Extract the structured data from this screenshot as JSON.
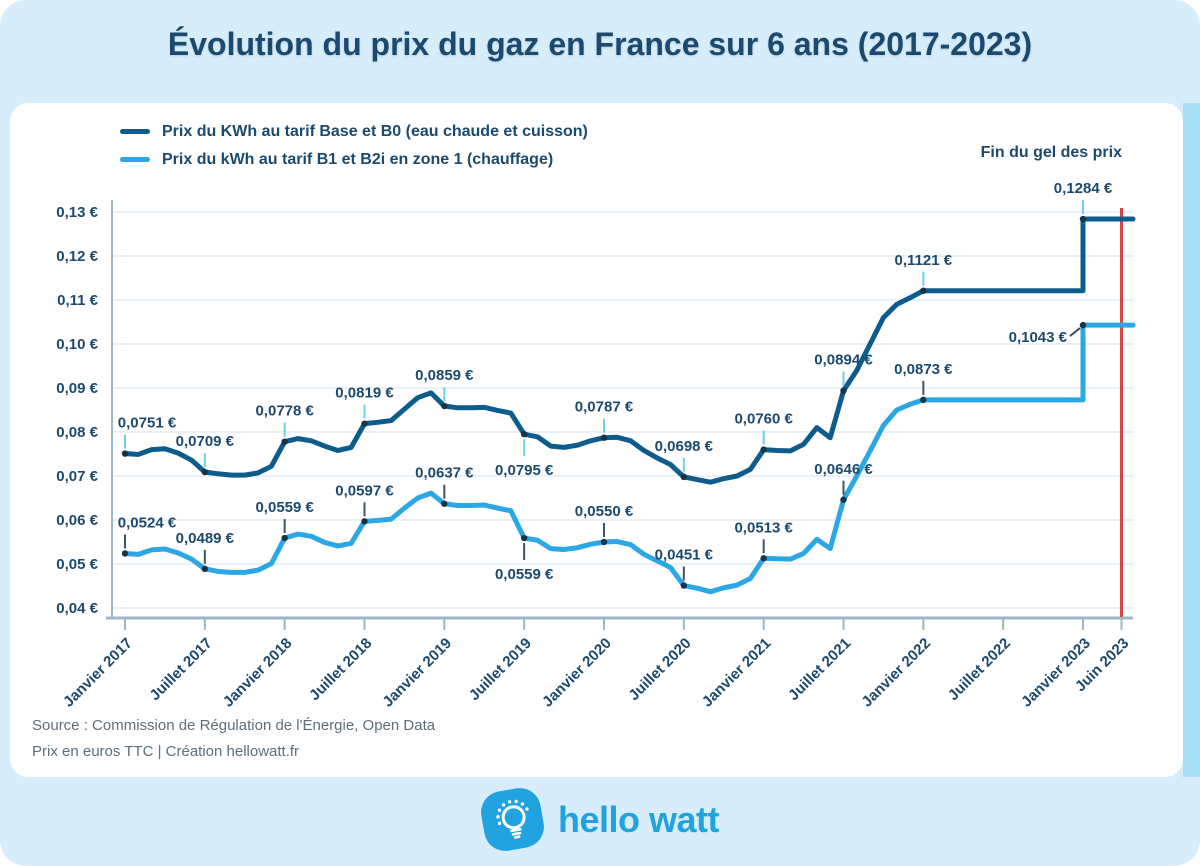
{
  "title": "Évolution du prix du gaz en France sur 6 ans (2017-2023)",
  "legend": {
    "items": [
      {
        "label": "Prix du KWh au tarif Base et B0 (eau chaude et cuisson)",
        "color": "#0d5c8c"
      },
      {
        "label": "Prix du kWh au tarif B1 et B2i en zone 1 (chauffage)",
        "color": "#2aa7e4"
      }
    ]
  },
  "annotation": "Fin du gel des prix",
  "source": {
    "line1": "Source : Commission de Régulation de l'Énergie, Open Data",
    "line2": "Prix en euros TTC | Création hellowatt.fr"
  },
  "logo": {
    "text": "hello watt"
  },
  "colors": {
    "canvas_bg": "#d7edf9",
    "card_bg": "#ffffff",
    "navy_text": "#1b4a6e",
    "series_base": "#0d5c8c",
    "series_b1": "#2aa7e4",
    "grid": "#e2ecf3",
    "axis": "#9db7c6",
    "event_line": "#d8493f",
    "leader_base": "#74ccf4",
    "leader_b1": "#3d5468",
    "dot": "#14344a",
    "gray_text": "#5f6e79",
    "logo_blue": "#21a3e0"
  },
  "chart_data": {
    "type": "line",
    "title": "Évolution du prix du gaz en France sur 6 ans (2017-2023)",
    "y_unit": "€",
    "ylim": [
      0.04,
      0.13
    ],
    "grid": true,
    "legend_position": "top-left",
    "x_months": {
      "start": "2017-01",
      "end": "2023-06",
      "count": 78
    },
    "x_tick_labels": [
      {
        "m": 0,
        "label": "Janvier 2017"
      },
      {
        "m": 6,
        "label": "Juillet 2017"
      },
      {
        "m": 12,
        "label": "Janvier 2018"
      },
      {
        "m": 18,
        "label": "Juillet 2018"
      },
      {
        "m": 24,
        "label": "Janvier 2019"
      },
      {
        "m": 30,
        "label": "Juillet 2019"
      },
      {
        "m": 36,
        "label": "Janvier 2020"
      },
      {
        "m": 42,
        "label": "Juillet 2020"
      },
      {
        "m": 48,
        "label": "Janvier 2021"
      },
      {
        "m": 54,
        "label": "Juillet 2021"
      },
      {
        "m": 60,
        "label": "Janvier 2022"
      },
      {
        "m": 66,
        "label": "Juillet 2022"
      },
      {
        "m": 72,
        "label": "Janvier 2023"
      },
      {
        "m": 77,
        "label": "Juin 2023"
      }
    ],
    "y_ticks": [
      {
        "value": 0.13,
        "label": "0,13 €"
      },
      {
        "value": 0.12,
        "label": "0,12 €"
      },
      {
        "value": 0.11,
        "label": "0,11 €"
      },
      {
        "value": 0.1,
        "label": "0,10 €"
      },
      {
        "value": 0.09,
        "label": "0,09 €"
      },
      {
        "value": 0.08,
        "label": "0,08 €"
      },
      {
        "value": 0.07,
        "label": "0,07 €"
      },
      {
        "value": 0.06,
        "label": "0,06 €"
      },
      {
        "value": 0.05,
        "label": "0,05 €"
      },
      {
        "value": 0.04,
        "label": "0,04 €"
      }
    ],
    "series": [
      {
        "name": "Prix du KWh au tarif Base et B0 (eau chaude et cuisson)",
        "color": "#0d5c8c",
        "values": [
          0.0751,
          0.0749,
          0.076,
          0.0762,
          0.0752,
          0.0736,
          0.0709,
          0.0705,
          0.0702,
          0.0702,
          0.0707,
          0.0722,
          0.0778,
          0.0785,
          0.078,
          0.0768,
          0.0758,
          0.0765,
          0.0819,
          0.0822,
          0.0826,
          0.0852,
          0.0878,
          0.0889,
          0.0859,
          0.0855,
          0.0855,
          0.0856,
          0.0849,
          0.0843,
          0.0795,
          0.0789,
          0.0768,
          0.0765,
          0.077,
          0.078,
          0.0787,
          0.0788,
          0.078,
          0.0758,
          0.0741,
          0.0726,
          0.0698,
          0.0692,
          0.0686,
          0.0694,
          0.07,
          0.0715,
          0.076,
          0.0758,
          0.0757,
          0.0772,
          0.081,
          0.0787,
          0.0894,
          0.094,
          0.1,
          0.106,
          0.109,
          0.1105,
          0.1121,
          0.1121,
          0.1121,
          0.1121,
          0.1121,
          0.1121,
          0.1121,
          0.1121,
          0.1121,
          0.1121,
          0.1121,
          0.1121,
          0.1284,
          0.1284,
          0.1284,
          0.1284,
          0.1284,
          0.1284
        ]
      },
      {
        "name": "Prix du kWh au tarif B1 et B2i en zone 1 (chauffage)",
        "color": "#2aa7e4",
        "values": [
          0.0524,
          0.0522,
          0.0532,
          0.0534,
          0.0525,
          0.0511,
          0.0489,
          0.0483,
          0.0481,
          0.0481,
          0.0486,
          0.0501,
          0.0559,
          0.0568,
          0.0563,
          0.0549,
          0.0541,
          0.0547,
          0.0597,
          0.0599,
          0.0602,
          0.0627,
          0.065,
          0.0661,
          0.0637,
          0.0633,
          0.0633,
          0.0634,
          0.0627,
          0.0621,
          0.0559,
          0.0554,
          0.0535,
          0.0533,
          0.0537,
          0.0545,
          0.055,
          0.0551,
          0.0544,
          0.0522,
          0.0507,
          0.0492,
          0.0451,
          0.0445,
          0.0437,
          0.0446,
          0.0452,
          0.0467,
          0.0513,
          0.0512,
          0.0511,
          0.0524,
          0.0556,
          0.0535,
          0.0646,
          0.07,
          0.0757,
          0.0815,
          0.085,
          0.0863,
          0.0873,
          0.0873,
          0.0873,
          0.0873,
          0.0873,
          0.0873,
          0.0873,
          0.0873,
          0.0873,
          0.0873,
          0.0873,
          0.0873,
          0.1043,
          0.1043,
          0.1043,
          0.1043,
          0.1043,
          0.1043
        ]
      }
    ],
    "step_months": [
      72
    ],
    "point_labels": [
      {
        "s": 0,
        "m": 0,
        "v": 0.0751,
        "text": "0,0751 €",
        "placement": "above"
      },
      {
        "s": 0,
        "m": 6,
        "v": 0.0709,
        "text": "0,0709 €",
        "placement": "above"
      },
      {
        "s": 0,
        "m": 12,
        "v": 0.0778,
        "text": "0,0778 €",
        "placement": "above"
      },
      {
        "s": 0,
        "m": 18,
        "v": 0.0819,
        "text": "0,0819 €",
        "placement": "above"
      },
      {
        "s": 0,
        "m": 24,
        "v": 0.0859,
        "text": "0,0859 €",
        "placement": "above"
      },
      {
        "s": 0,
        "m": 30,
        "v": 0.0795,
        "text": "0,0795 €",
        "placement": "below"
      },
      {
        "s": 0,
        "m": 36,
        "v": 0.0787,
        "text": "0,0787 €",
        "placement": "above"
      },
      {
        "s": 0,
        "m": 42,
        "v": 0.0698,
        "text": "0,0698 €",
        "placement": "above"
      },
      {
        "s": 0,
        "m": 48,
        "v": 0.076,
        "text": "0,0760 €",
        "placement": "above"
      },
      {
        "s": 0,
        "m": 54,
        "v": 0.0894,
        "text": "0,0894 €",
        "placement": "above"
      },
      {
        "s": 0,
        "m": 60,
        "v": 0.1121,
        "text": "0,1121 €",
        "placement": "above"
      },
      {
        "s": 0,
        "m": 72,
        "v": 0.1284,
        "text": "0,1284 €",
        "placement": "above"
      },
      {
        "s": 1,
        "m": 0,
        "v": 0.0524,
        "text": "0,0524 €",
        "placement": "above"
      },
      {
        "s": 1,
        "m": 6,
        "v": 0.0489,
        "text": "0,0489 €",
        "placement": "above"
      },
      {
        "s": 1,
        "m": 12,
        "v": 0.0559,
        "text": "0,0559 €",
        "placement": "above"
      },
      {
        "s": 1,
        "m": 18,
        "v": 0.0597,
        "text": "0,0597 €",
        "placement": "above"
      },
      {
        "s": 1,
        "m": 24,
        "v": 0.0637,
        "text": "0,0637 €",
        "placement": "above"
      },
      {
        "s": 1,
        "m": 30,
        "v": 0.0559,
        "text": "0,0559 €",
        "placement": "below"
      },
      {
        "s": 1,
        "m": 36,
        "v": 0.055,
        "text": "0,0550 €",
        "placement": "above"
      },
      {
        "s": 1,
        "m": 42,
        "v": 0.0451,
        "text": "0,0451 €",
        "placement": "above"
      },
      {
        "s": 1,
        "m": 48,
        "v": 0.0513,
        "text": "0,0513 €",
        "placement": "above"
      },
      {
        "s": 1,
        "m": 54,
        "v": 0.0646,
        "text": "0,0646 €",
        "placement": "above"
      },
      {
        "s": 1,
        "m": 60,
        "v": 0.0873,
        "text": "0,0873 €",
        "placement": "above"
      },
      {
        "s": 1,
        "m": 72,
        "v": 0.1043,
        "text": "0,1043 €",
        "placement": "left"
      }
    ],
    "event_line": {
      "m": 77,
      "label": "Fin du gel des prix",
      "color": "#d8493f"
    }
  }
}
